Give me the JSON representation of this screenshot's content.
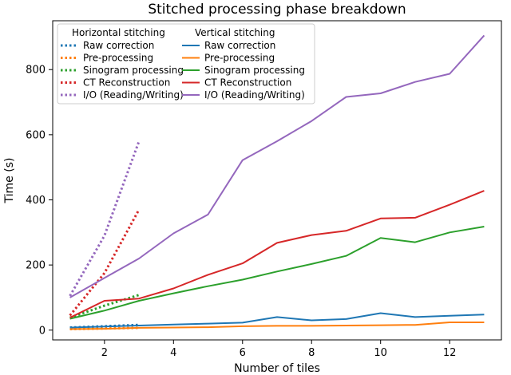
{
  "chart_data": {
    "type": "line",
    "title": "Stitched processing phase breakdown",
    "xlabel": "Number of tiles",
    "ylabel": "Time (s)",
    "xlim": [
      0.5,
      13.5
    ],
    "ylim": [
      -30,
      950
    ],
    "xticks": [
      2,
      4,
      6,
      8,
      10,
      12
    ],
    "yticks": [
      0,
      200,
      400,
      600,
      800
    ],
    "grid": false,
    "legend_position": "top-left",
    "legend_groups": [
      "Horizontal stitching",
      "Vertical stitching"
    ],
    "series": [
      {
        "name": "Raw correction",
        "group": "Horizontal stitching",
        "style": "dotted",
        "color": "#1f77b4",
        "x": [
          1,
          2,
          3
        ],
        "y": [
          8,
          12,
          16
        ]
      },
      {
        "name": "Pre-processing",
        "group": "Horizontal stitching",
        "style": "dotted",
        "color": "#ff7f0e",
        "x": [
          1,
          2,
          3
        ],
        "y": [
          3,
          5,
          7
        ]
      },
      {
        "name": "Sinogram processing",
        "group": "Horizontal stitching",
        "style": "dotted",
        "color": "#2ca02c",
        "x": [
          1,
          2,
          3
        ],
        "y": [
          38,
          75,
          108
        ]
      },
      {
        "name": "CT Reconstruction",
        "group": "Horizontal stitching",
        "style": "dotted",
        "color": "#d62728",
        "x": [
          1,
          2,
          3
        ],
        "y": [
          45,
          175,
          370
        ]
      },
      {
        "name": "I/O (Reading/Writing)",
        "group": "Horizontal stitching",
        "style": "dotted",
        "color": "#9467bd",
        "x": [
          1,
          2,
          3
        ],
        "y": [
          105,
          290,
          580
        ]
      },
      {
        "name": "Raw correction",
        "group": "Vertical stitching",
        "style": "solid",
        "color": "#1f77b4",
        "x": [
          1,
          2,
          3,
          4,
          5,
          6,
          7,
          8,
          9,
          10,
          11,
          12,
          13
        ],
        "y": [
          8,
          11,
          14,
          17,
          20,
          23,
          40,
          30,
          34,
          52,
          40,
          44,
          48
        ]
      },
      {
        "name": "Pre-processing",
        "group": "Vertical stitching",
        "style": "solid",
        "color": "#ff7f0e",
        "x": [
          1,
          2,
          3,
          4,
          5,
          6,
          7,
          8,
          9,
          10,
          11,
          12,
          13
        ],
        "y": [
          3,
          4,
          7,
          8,
          9,
          12,
          13,
          13,
          14,
          15,
          16,
          24,
          24
        ]
      },
      {
        "name": "Sinogram processing",
        "group": "Vertical stitching",
        "style": "solid",
        "color": "#2ca02c",
        "x": [
          1,
          2,
          3,
          4,
          5,
          6,
          7,
          8,
          9,
          10,
          11,
          12,
          13
        ],
        "y": [
          35,
          60,
          90,
          113,
          135,
          155,
          180,
          203,
          228,
          283,
          270,
          300,
          318
        ]
      },
      {
        "name": "CT Reconstruction",
        "group": "Vertical stitching",
        "style": "solid",
        "color": "#d62728",
        "x": [
          1,
          2,
          3,
          4,
          5,
          6,
          7,
          8,
          9,
          10,
          11,
          12,
          13
        ],
        "y": [
          38,
          90,
          97,
          128,
          170,
          205,
          268,
          292,
          305,
          343,
          345,
          385,
          428
        ]
      },
      {
        "name": "I/O (Reading/Writing)",
        "group": "Vertical stitching",
        "style": "solid",
        "color": "#9467bd",
        "x": [
          1,
          2,
          3,
          4,
          5,
          6,
          7,
          8,
          9,
          10,
          11,
          12,
          13
        ],
        "y": [
          100,
          160,
          220,
          297,
          355,
          522,
          580,
          642,
          716,
          727,
          762,
          787,
          905
        ]
      }
    ]
  }
}
